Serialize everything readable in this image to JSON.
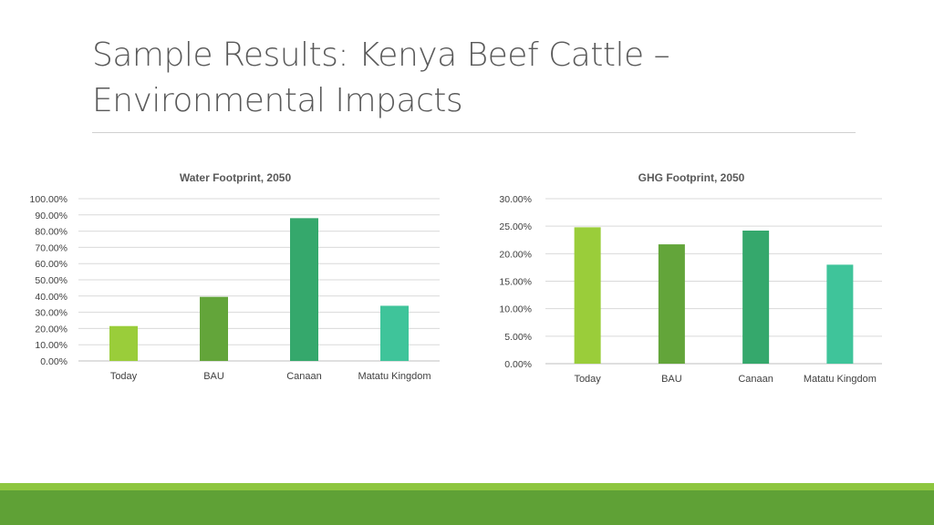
{
  "slide": {
    "title_line1": "Sample Results: Kenya Beef Cattle –",
    "title_line2": "Environmental Impacts"
  },
  "colors": {
    "today": "#9acd3a",
    "bau": "#63a53a",
    "canaan": "#35a86c",
    "matatu": "#3fc49a",
    "footer_light": "#8dc63f",
    "footer_dark": "#5fa136"
  },
  "chart_data": [
    {
      "id": "water",
      "type": "bar",
      "title": "Water Footprint, 2050",
      "categories": [
        "Today",
        "BAU",
        "Canaan",
        "Matatu Kingdom"
      ],
      "values": [
        21.5,
        39.5,
        88.0,
        34.0
      ],
      "ylim": [
        0,
        100
      ],
      "yticks": [
        0,
        10,
        20,
        30,
        40,
        50,
        60,
        70,
        80,
        90,
        100
      ],
      "ytick_labels": [
        "0.00%",
        "10.00%",
        "20.00%",
        "30.00%",
        "40.00%",
        "50.00%",
        "60.00%",
        "70.00%",
        "80.00%",
        "90.00%",
        "100.00%"
      ],
      "xlabel": "",
      "ylabel": "",
      "grid": true
    },
    {
      "id": "ghg",
      "type": "bar",
      "title": "GHG Footprint, 2050",
      "categories": [
        "Today",
        "BAU",
        "Canaan",
        "Matatu Kingdom"
      ],
      "values": [
        24.8,
        21.7,
        24.2,
        18.0
      ],
      "ylim": [
        0,
        30
      ],
      "yticks": [
        0,
        5,
        10,
        15,
        20,
        25,
        30
      ],
      "ytick_labels": [
        "0.00%",
        "5.00%",
        "10.00%",
        "15.00%",
        "20.00%",
        "25.00%",
        "30.00%"
      ],
      "xlabel": "",
      "ylabel": "",
      "grid": true
    }
  ]
}
